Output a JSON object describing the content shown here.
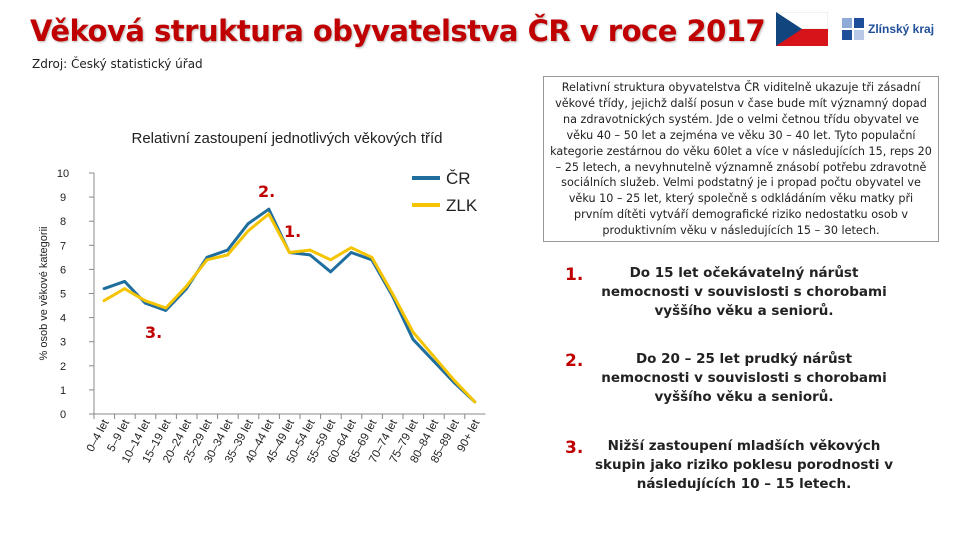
{
  "header": {
    "title": "Věková struktura obyvatelstva ČR v roce 2017",
    "source": "Zdroj: Český statistický úřad",
    "logo_text": "Zlínský kraj"
  },
  "info_text": "Relativní struktura obyvatelstva ČR viditelně ukazuje tři zásadní věkové třídy, jejichž další posun v čase bude mít významný dopad na zdravotnických systém. Jde o velmi četnou třídu obyvatel ve věku 40 – 50 let a zejména ve věku 30 – 40 let. Tyto populační kategorie zestárnou do věku 60let a více v následujících 15, reps 20 – 25 letech, a nevyhnutelně významně znásobí potřebu zdravotně sociálních služeb. Velmi podstatný je i propad počtu obyvatel ve věku 10 – 25 let, který společně s odkládáním věku matky při prvním dítěti vytváří demografické riziko nedostatku osob v produktivním věku v následujících 15 – 30 letech.",
  "points": [
    {
      "num": "1.",
      "text": "Do 15 let očekávatelný nárůst nemocnosti v souvislosti s chorobami vyššího věku a seniorů."
    },
    {
      "num": "2.",
      "text": "Do 20 – 25 let prudký nárůst nemocnosti v souvislosti s chorobami vyššího věku a seniorů."
    },
    {
      "num": "3.",
      "text": "Nižší zastoupení mladších věkových skupin jako riziko poklesu porodnosti v následujících 10 – 15 letech."
    }
  ],
  "colors": {
    "title": "#c00000",
    "cr": "#1f6e9e",
    "zlk": "#f5c400",
    "annotation": "#c00000"
  },
  "chart_data": {
    "type": "line",
    "title": "Relativní zastoupení jednotlivých věkových tříd",
    "ylabel": "% osob ve věkové kategorii",
    "xlabel": "",
    "ylim": [
      0,
      10
    ],
    "yticks": [
      "0",
      "1",
      "2",
      "3",
      "4",
      "5",
      "6",
      "7",
      "8",
      "9",
      "10"
    ],
    "grid": false,
    "legend": "top-right",
    "categories": [
      "0–4 let",
      "5–9 let",
      "10–14 let",
      "15–19 let",
      "20–24 let",
      "25–29 let",
      "30–34 let",
      "35–39 let",
      "40–44 let",
      "45–49 let",
      "50–54 let",
      "55–59 let",
      "60–64 let",
      "65–69 let",
      "70–74 let",
      "75–79 let",
      "80–84 let",
      "85–89 let",
      "90+ let"
    ],
    "series": [
      {
        "name": "ČR",
        "values": [
          5.2,
          5.5,
          4.6,
          4.3,
          5.2,
          6.5,
          6.8,
          7.9,
          8.5,
          6.7,
          6.6,
          5.9,
          6.7,
          6.4,
          4.9,
          3.1,
          2.2,
          1.3,
          0.5
        ]
      },
      {
        "name": "ZLK",
        "values": [
          4.7,
          5.2,
          4.7,
          4.4,
          5.3,
          6.4,
          6.6,
          7.6,
          8.3,
          6.7,
          6.8,
          6.4,
          6.9,
          6.5,
          5.0,
          3.4,
          2.4,
          1.4,
          0.5
        ]
      }
    ],
    "annotations": [
      "1.",
      "2.",
      "3."
    ]
  }
}
